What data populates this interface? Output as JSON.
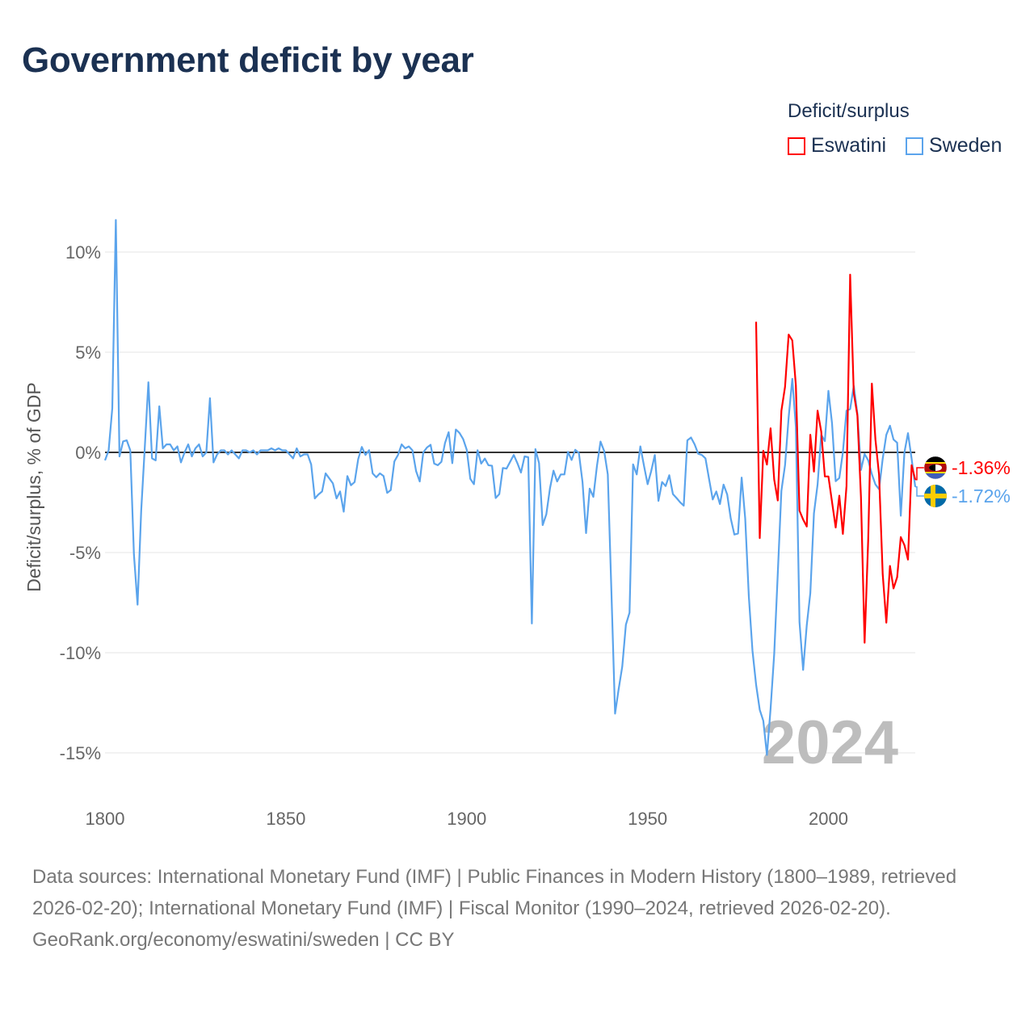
{
  "title": "Government deficit by year",
  "legend": {
    "title": "Deficit/surplus",
    "items": [
      {
        "label": "Eswatini",
        "color": "#ff0000"
      },
      {
        "label": "Sweden",
        "color": "#5ba4ec"
      }
    ]
  },
  "year_display": "2024",
  "end_labels": {
    "eswatini": "-1.36%",
    "sweden": "-1.72%"
  },
  "footer": {
    "sources": "Data sources: International Monetary Fund (IMF) | Public Finances in Modern History (1800–1989, retrieved 2026-02-20); International Monetary Fund (IMF) | Fiscal Monitor (1990–2024, retrieved 2026-02-20).",
    "credit": "GeoRank.org/economy/eswatini/sweden | CC BY"
  },
  "chart_data": {
    "type": "line",
    "title": "Government deficit by year",
    "xlabel": "",
    "ylabel": "Deficit/surplus, % of GDP",
    "xlim": [
      1800,
      2024
    ],
    "ylim": [
      -15,
      10
    ],
    "x_ticks": [
      1800,
      1850,
      1900,
      1950,
      2000
    ],
    "x_tick_labels": [
      "1800",
      "1850",
      "1900",
      "1950",
      "2000"
    ],
    "y_ticks": [
      10,
      5,
      0,
      -5,
      -10,
      -15
    ],
    "y_tick_labels": [
      "10%",
      "5%",
      "0%",
      "-5%",
      "-10%",
      "-15%"
    ],
    "grid": true,
    "legend_position": "top-right",
    "series": [
      {
        "name": "Sweden",
        "color": "#5ba4ec",
        "start_year": 1800,
        "values": [
          -0.4,
          0.1,
          2.2,
          11.6,
          -0.2,
          0.55,
          0.6,
          0.1,
          -5.1,
          -7.6,
          -2.9,
          0.3,
          3.5,
          -0.3,
          -0.4,
          2.3,
          0.2,
          0.4,
          0.4,
          0.1,
          0.3,
          -0.5,
          0.0,
          0.4,
          -0.2,
          0.2,
          0.4,
          -0.2,
          0.0,
          2.7,
          -0.5,
          -0.1,
          0.1,
          0.1,
          -0.1,
          0.1,
          -0.1,
          -0.3,
          0.1,
          0.1,
          0.0,
          0.1,
          -0.1,
          0.1,
          0.1,
          0.1,
          0.2,
          0.1,
          0.2,
          0.1,
          0.1,
          -0.1,
          -0.3,
          0.2,
          -0.2,
          -0.1,
          -0.1,
          -0.6,
          -2.3,
          -2.1,
          -1.95,
          -1.05,
          -1.3,
          -1.55,
          -2.3,
          -1.95,
          -2.96,
          -1.18,
          -1.64,
          -1.48,
          -0.34,
          0.27,
          -0.13,
          0.11,
          -1.05,
          -1.24,
          -1.05,
          -1.18,
          -2.02,
          -1.88,
          -0.45,
          -0.13,
          0.4,
          0.2,
          0.3,
          0.1,
          -0.94,
          -1.45,
          0.0,
          0.24,
          0.38,
          -0.56,
          -0.64,
          -0.47,
          0.47,
          1.01,
          -0.54,
          1.14,
          0.97,
          0.67,
          0.13,
          -1.32,
          -1.59,
          0.11,
          -0.56,
          -0.31,
          -0.64,
          -0.67,
          -2.28,
          -2.08,
          -0.78,
          -0.81,
          -0.47,
          -0.13,
          -0.54,
          -1.01,
          -0.2,
          -0.24,
          -8.54,
          0.16,
          -0.54,
          -3.63,
          -3.09,
          -1.8,
          -0.91,
          -1.45,
          -1.1,
          -1.1,
          0.03,
          -0.38,
          0.13,
          -0.03,
          -1.48,
          -4.03,
          -1.81,
          -2.22,
          -0.67,
          0.54,
          0.07,
          -1.1,
          -6.99,
          -13.04,
          -11.83,
          -10.69,
          -8.6,
          -8.0,
          -0.6,
          -1.1,
          0.3,
          -0.67,
          -1.59,
          -0.94,
          -0.13,
          -2.42,
          -1.48,
          -1.68,
          -1.14,
          -2.08,
          -2.28,
          -2.49,
          -2.66,
          0.6,
          0.74,
          0.4,
          -0.07,
          -0.13,
          -0.3,
          -1.34,
          -2.35,
          -1.95,
          -2.58,
          -1.61,
          -2.1,
          -3.3,
          -4.1,
          -4.05,
          -1.26,
          -3.3,
          -7.2,
          -9.9,
          -11.6,
          -12.85,
          -13.4,
          -15.1,
          -12.8,
          -10.06,
          -6.07,
          -1.92,
          -0.64,
          1.76,
          3.67,
          1.28,
          -8.47,
          -10.86,
          -8.63,
          -7.03,
          -3.04,
          -1.6,
          0.88,
          0.56,
          3.07,
          1.44,
          -1.44,
          -1.28,
          0.0,
          2.08,
          2.16,
          3.32,
          1.92,
          -0.88,
          -0.08,
          -0.4,
          -1.09,
          -1.6,
          -1.84,
          -0.32,
          0.88,
          1.33,
          0.64,
          0.48,
          -3.16,
          0.0,
          0.96,
          -0.32,
          -1.72
        ]
      },
      {
        "name": "Eswatini",
        "color": "#ff0000",
        "start_year": 1980,
        "values": [
          6.52,
          -4.28,
          0.08,
          -0.61,
          1.2,
          -1.36,
          -2.4,
          2.08,
          3.27,
          5.88,
          5.59,
          3.35,
          -2.91,
          -3.35,
          -3.7,
          0.88,
          -0.96,
          2.08,
          1.04,
          -1.2,
          -1.2,
          -2.48,
          -3.75,
          -2.16,
          -4.07,
          -1.68,
          8.87,
          2.96,
          1.84,
          -2.24,
          -9.5,
          -4.31,
          3.43,
          0.64,
          -1.12,
          -6.07,
          -8.5,
          -5.67,
          -6.79,
          -6.23,
          -4.23,
          -4.63,
          -5.35,
          -0.64,
          -1.36
        ]
      }
    ]
  }
}
